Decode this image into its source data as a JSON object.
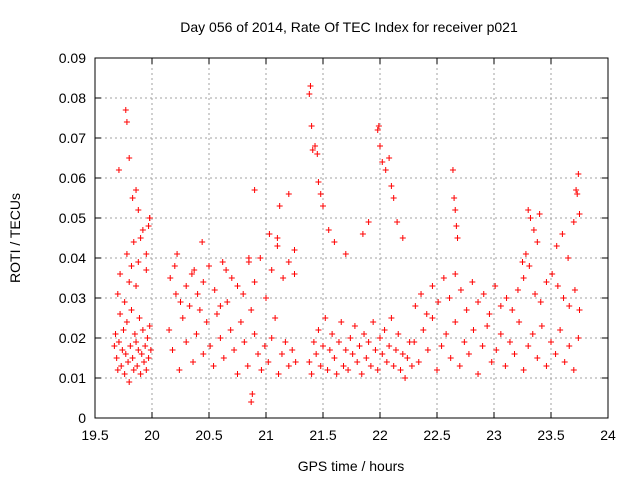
{
  "chart_data": {
    "type": "scatter",
    "title": "Day 056 of 2014, Rate Of TEC Index for receiver p021",
    "xlabel": "GPS time / hours",
    "ylabel": "ROTI / TECUs",
    "xlim": [
      19.5,
      24
    ],
    "ylim": [
      0,
      0.09
    ],
    "grid": true,
    "legend": "none",
    "marker": "+",
    "color": "#ff0000",
    "x_ticks": [
      "19.5",
      "20",
      "20.5",
      "21",
      "21.5",
      "22",
      "22.5",
      "23",
      "23.5",
      "24"
    ],
    "y_ticks": [
      "0",
      "0.01",
      "0.02",
      "0.03",
      "0.04",
      "0.05",
      "0.06",
      "0.07",
      "0.08",
      "0.09"
    ],
    "series": [
      {
        "name": "p021",
        "x": [
          19.67,
          19.68,
          19.69,
          19.7,
          19.71,
          19.72,
          19.73,
          19.74,
          19.75,
          19.76,
          19.77,
          19.78,
          19.79,
          19.8,
          19.81,
          19.82,
          19.83,
          19.84,
          19.85,
          19.86,
          19.87,
          19.88,
          19.89,
          19.9,
          19.91,
          19.92,
          19.93,
          19.94,
          19.95,
          19.96,
          19.97,
          19.98,
          19.99,
          19.7,
          19.72,
          19.76,
          19.78,
          19.8,
          19.82,
          19.84,
          19.86,
          19.88,
          19.9,
          19.95,
          19.97,
          19.98,
          19.77,
          19.78,
          19.8,
          19.83,
          19.86,
          19.88,
          19.71,
          19.92,
          19.95,
          19.98,
          20.15,
          20.18,
          20.21,
          20.24,
          20.27,
          20.3,
          20.33,
          20.36,
          20.39,
          20.42,
          20.45,
          20.48,
          20.51,
          20.54,
          20.57,
          20.6,
          20.63,
          20.66,
          20.69,
          20.72,
          20.75,
          20.78,
          20.81,
          20.84,
          20.87,
          20.9,
          20.93,
          20.96,
          20.99,
          21.02,
          21.05,
          21.08,
          21.11,
          21.14,
          21.17,
          21.2,
          21.23,
          21.26,
          20.16,
          20.2,
          20.25,
          20.3,
          20.35,
          20.4,
          20.45,
          20.5,
          20.55,
          20.6,
          20.65,
          20.7,
          20.75,
          20.8,
          20.85,
          20.9,
          20.95,
          21.0,
          21.05,
          21.1,
          21.15,
          21.2,
          21.25,
          20.22,
          20.37,
          20.44,
          20.62,
          20.85,
          20.9,
          21.03,
          21.1,
          21.12,
          21.25,
          20.88,
          20.87,
          21.2,
          21.38,
          21.4,
          21.42,
          21.44,
          21.46,
          21.48,
          21.5,
          21.52,
          21.54,
          21.56,
          21.58,
          21.6,
          21.62,
          21.64,
          21.66,
          21.68,
          21.7,
          21.72,
          21.74,
          21.76,
          21.78,
          21.8,
          21.82,
          21.84,
          21.86,
          21.88,
          21.9,
          21.92,
          21.94,
          21.96,
          21.98,
          22.0,
          22.02,
          22.04,
          22.06,
          22.08,
          22.1,
          22.12,
          22.14,
          22.16,
          22.18,
          22.2,
          22.22,
          22.24,
          22.26,
          22.28,
          21.38,
          21.39,
          21.4,
          21.41,
          21.43,
          21.45,
          21.46,
          21.48,
          21.5,
          21.55,
          21.6,
          21.7,
          21.85,
          21.9,
          21.98,
          21.99,
          22.0,
          22.02,
          22.05,
          22.08,
          22.1,
          22.12,
          22.15,
          22.2,
          22.3,
          22.34,
          22.38,
          22.42,
          22.46,
          22.5,
          22.54,
          22.58,
          22.62,
          22.66,
          22.7,
          22.74,
          22.78,
          22.82,
          22.86,
          22.9,
          22.94,
          22.98,
          23.02,
          23.06,
          23.1,
          23.14,
          23.18,
          23.22,
          23.26,
          23.3,
          23.34,
          23.38,
          23.42,
          23.46,
          23.5,
          23.54,
          23.58,
          23.62,
          23.66,
          23.7,
          23.74,
          22.31,
          22.36,
          22.41,
          22.46,
          22.51,
          22.56,
          22.61,
          22.66,
          22.71,
          22.76,
          22.81,
          22.86,
          22.91,
          22.96,
          23.01,
          23.06,
          23.11,
          23.16,
          23.21,
          23.26,
          23.31,
          23.36,
          23.41,
          23.46,
          23.51,
          23.56,
          23.61,
          23.66,
          23.71,
          23.75,
          22.64,
          22.65,
          22.66,
          22.67,
          22.68,
          23.3,
          23.32,
          23.35,
          23.38,
          23.4,
          23.55,
          23.6,
          23.65,
          23.7,
          23.72,
          23.74,
          23.75,
          23.73,
          23.28,
          23.25
        ],
        "y": [
          0.018,
          0.021,
          0.015,
          0.012,
          0.019,
          0.026,
          0.013,
          0.017,
          0.022,
          0.011,
          0.016,
          0.024,
          0.014,
          0.009,
          0.018,
          0.027,
          0.015,
          0.012,
          0.021,
          0.019,
          0.013,
          0.017,
          0.025,
          0.011,
          0.016,
          0.022,
          0.014,
          0.018,
          0.012,
          0.02,
          0.015,
          0.023,
          0.017,
          0.031,
          0.036,
          0.029,
          0.041,
          0.034,
          0.038,
          0.044,
          0.033,
          0.039,
          0.045,
          0.037,
          0.048,
          0.05,
          0.077,
          0.074,
          0.065,
          0.055,
          0.057,
          0.052,
          0.062,
          0.047,
          0.041,
          0.05,
          0.022,
          0.017,
          0.031,
          0.012,
          0.025,
          0.019,
          0.028,
          0.014,
          0.021,
          0.027,
          0.016,
          0.024,
          0.018,
          0.013,
          0.026,
          0.02,
          0.015,
          0.029,
          0.022,
          0.017,
          0.011,
          0.024,
          0.019,
          0.013,
          0.027,
          0.021,
          0.016,
          0.012,
          0.018,
          0.014,
          0.02,
          0.025,
          0.011,
          0.016,
          0.019,
          0.013,
          0.017,
          0.014,
          0.035,
          0.038,
          0.029,
          0.033,
          0.036,
          0.031,
          0.034,
          0.038,
          0.032,
          0.028,
          0.037,
          0.035,
          0.033,
          0.031,
          0.039,
          0.034,
          0.04,
          0.03,
          0.037,
          0.043,
          0.035,
          0.039,
          0.036,
          0.041,
          0.037,
          0.044,
          0.039,
          0.04,
          0.057,
          0.046,
          0.045,
          0.053,
          0.042,
          0.006,
          0.004,
          0.056,
          0.014,
          0.011,
          0.019,
          0.016,
          0.022,
          0.013,
          0.018,
          0.025,
          0.012,
          0.017,
          0.021,
          0.015,
          0.011,
          0.019,
          0.024,
          0.013,
          0.017,
          0.012,
          0.02,
          0.016,
          0.023,
          0.014,
          0.018,
          0.011,
          0.021,
          0.015,
          0.019,
          0.013,
          0.024,
          0.017,
          0.012,
          0.02,
          0.016,
          0.022,
          0.014,
          0.018,
          0.025,
          0.013,
          0.017,
          0.021,
          0.012,
          0.016,
          0.01,
          0.015,
          0.019,
          0.013,
          0.081,
          0.083,
          0.073,
          0.067,
          0.068,
          0.066,
          0.059,
          0.056,
          0.053,
          0.047,
          0.044,
          0.041,
          0.046,
          0.049,
          0.072,
          0.073,
          0.068,
          0.064,
          0.062,
          0.065,
          0.058,
          0.055,
          0.049,
          0.045,
          0.019,
          0.014,
          0.022,
          0.017,
          0.025,
          0.012,
          0.018,
          0.021,
          0.015,
          0.024,
          0.013,
          0.019,
          0.016,
          0.022,
          0.011,
          0.018,
          0.023,
          0.014,
          0.017,
          0.021,
          0.013,
          0.019,
          0.016,
          0.024,
          0.012,
          0.018,
          0.021,
          0.015,
          0.023,
          0.013,
          0.019,
          0.016,
          0.022,
          0.014,
          0.018,
          0.012,
          0.02,
          0.028,
          0.031,
          0.026,
          0.033,
          0.029,
          0.035,
          0.03,
          0.036,
          0.032,
          0.027,
          0.034,
          0.029,
          0.031,
          0.026,
          0.033,
          0.028,
          0.03,
          0.027,
          0.032,
          0.035,
          0.038,
          0.031,
          0.029,
          0.034,
          0.036,
          0.033,
          0.03,
          0.028,
          0.032,
          0.027,
          0.062,
          0.055,
          0.052,
          0.048,
          0.045,
          0.052,
          0.05,
          0.047,
          0.044,
          0.051,
          0.043,
          0.046,
          0.04,
          0.049,
          0.057,
          0.061,
          0.051,
          0.056,
          0.041,
          0.039
        ]
      }
    ]
  }
}
